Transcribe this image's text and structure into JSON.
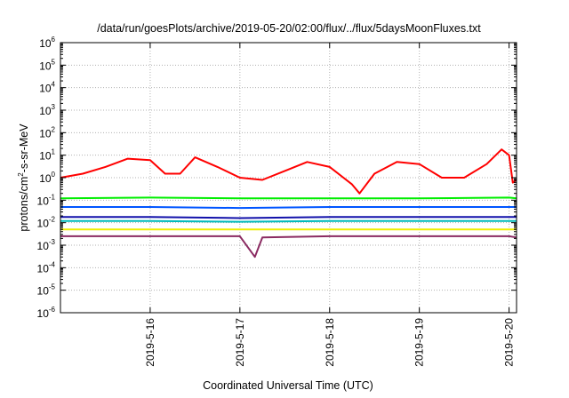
{
  "chart_data": {
    "type": "line",
    "title": "/data/run/goesPlots/archive/2019-05-20/02:00/flux/../flux/5daysMoonFluxes.txt",
    "xlabel": "Coordinated Universal Time (UTC)",
    "ylabel": "protons/cm2-s-sr-MeV",
    "ylabel_parts": {
      "pre": "protons/cm",
      "sup": "2",
      "post": "-s-sr-MeV"
    },
    "y_scale": "log",
    "ylim": [
      1e-06,
      1000000.0
    ],
    "y_ticks": [
      {
        "base": "10",
        "exp": "-6",
        "value": 1e-06
      },
      {
        "base": "10",
        "exp": "-5",
        "value": 1e-05
      },
      {
        "base": "10",
        "exp": "-4",
        "value": 0.0001
      },
      {
        "base": "10",
        "exp": "-3",
        "value": 0.001
      },
      {
        "base": "10",
        "exp": "-2",
        "value": 0.01
      },
      {
        "base": "10",
        "exp": "-1",
        "value": 0.1
      },
      {
        "base": "10",
        "exp": "0",
        "value": 1
      },
      {
        "base": "10",
        "exp": "1",
        "value": 10
      },
      {
        "base": "10",
        "exp": "2",
        "value": 100
      },
      {
        "base": "10",
        "exp": "3",
        "value": 1000
      },
      {
        "base": "10",
        "exp": "4",
        "value": 10000
      },
      {
        "base": "10",
        "exp": "5",
        "value": 100000
      },
      {
        "base": "10",
        "exp": "6",
        "value": 1000000
      }
    ],
    "xlim": [
      "2019-05-15T00:00",
      "2019-05-20T02:00"
    ],
    "x_ticks": [
      {
        "label": "2019-5-16",
        "value": "2019-05-16T00:00"
      },
      {
        "label": "2019-5-17",
        "value": "2019-05-17T00:00"
      },
      {
        "label": "2019-5-18",
        "value": "2019-05-18T00:00"
      },
      {
        "label": "2019-5-19",
        "value": "2019-05-19T00:00"
      },
      {
        "label": "2019-5-20",
        "value": "2019-05-20T00:00"
      }
    ],
    "grid": true,
    "legend": "none",
    "colors": [
      "#ff0000",
      "#00ee00",
      "#0055ff",
      "#00bbbb",
      "#1111aa",
      "#eeee00",
      "#8b2b62"
    ],
    "series": [
      {
        "color": "#ff0000",
        "x": [
          "2019-05-15T00:00",
          "2019-05-15T06:00",
          "2019-05-15T12:00",
          "2019-05-15T18:00",
          "2019-05-16T00:00",
          "2019-05-16T04:00",
          "2019-05-16T08:00",
          "2019-05-16T12:00",
          "2019-05-16T18:00",
          "2019-05-17T00:00",
          "2019-05-17T06:00",
          "2019-05-17T12:00",
          "2019-05-17T18:00",
          "2019-05-18T00:00",
          "2019-05-18T06:00",
          "2019-05-18T08:00",
          "2019-05-18T12:00",
          "2019-05-18T18:00",
          "2019-05-19T00:00",
          "2019-05-19T06:00",
          "2019-05-19T12:00",
          "2019-05-19T18:00",
          "2019-05-19T22:00",
          "2019-05-20T00:00",
          "2019-05-20T01:00",
          "2019-05-20T02:00"
        ],
        "values": [
          1.0,
          1.5,
          3.0,
          7.0,
          6.0,
          1.5,
          1.5,
          8.0,
          3.0,
          1.0,
          0.8,
          2.0,
          5.0,
          3.0,
          0.5,
          0.2,
          1.5,
          5.0,
          4.0,
          1.0,
          1.0,
          4.0,
          18.0,
          10.0,
          0.6,
          0.8
        ]
      },
      {
        "color": "#00ee00",
        "x": [
          "2019-05-15T00:00",
          "2019-05-16T00:00",
          "2019-05-17T00:00",
          "2019-05-18T00:00",
          "2019-05-19T00:00",
          "2019-05-20T00:00",
          "2019-05-20T02:00"
        ],
        "values": [
          0.12,
          0.13,
          0.12,
          0.12,
          0.12,
          0.13,
          0.12
        ]
      },
      {
        "color": "#0055ff",
        "x": [
          "2019-05-15T00:00",
          "2019-05-16T00:00",
          "2019-05-17T00:00",
          "2019-05-18T00:00",
          "2019-05-19T00:00",
          "2019-05-20T00:00",
          "2019-05-20T02:00"
        ],
        "values": [
          0.05,
          0.05,
          0.045,
          0.05,
          0.05,
          0.05,
          0.05
        ]
      },
      {
        "color": "#00bbbb",
        "x": [
          "2019-05-15T00:00",
          "2019-05-16T00:00",
          "2019-05-17T00:00",
          "2019-05-18T00:00",
          "2019-05-19T00:00",
          "2019-05-20T00:00",
          "2019-05-20T02:00"
        ],
        "values": [
          0.012,
          0.012,
          0.011,
          0.012,
          0.012,
          0.012,
          0.012
        ]
      },
      {
        "color": "#1111aa",
        "x": [
          "2019-05-15T00:00",
          "2019-05-16T00:00",
          "2019-05-17T00:00",
          "2019-05-18T00:00",
          "2019-05-19T00:00",
          "2019-05-20T00:00",
          "2019-05-20T02:00"
        ],
        "values": [
          0.018,
          0.018,
          0.016,
          0.018,
          0.018,
          0.018,
          0.018
        ]
      },
      {
        "color": "#eeee00",
        "x": [
          "2019-05-15T00:00",
          "2019-05-16T00:00",
          "2019-05-17T00:00",
          "2019-05-18T00:00",
          "2019-05-19T00:00",
          "2019-05-20T00:00",
          "2019-05-20T02:00"
        ],
        "values": [
          0.005,
          0.005,
          0.005,
          0.005,
          0.005,
          0.005,
          0.005
        ]
      },
      {
        "color": "#8b2b62",
        "x": [
          "2019-05-15T00:00",
          "2019-05-16T00:00",
          "2019-05-17T00:00",
          "2019-05-17T04:00",
          "2019-05-17T06:00",
          "2019-05-18T00:00",
          "2019-05-19T00:00",
          "2019-05-20T00:00",
          "2019-05-20T02:00"
        ],
        "values": [
          0.0025,
          0.0025,
          0.0025,
          0.0003,
          0.0022,
          0.0025,
          0.0025,
          0.0025,
          0.0022
        ]
      }
    ]
  }
}
